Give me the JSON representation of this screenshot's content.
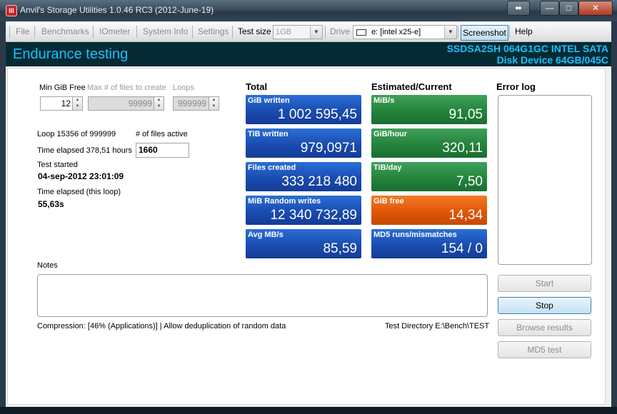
{
  "window": {
    "title": "Anvil's Storage Utilities 1.0.46 RC3 (2012-June-19)",
    "app_icon_glyph": "III",
    "controls": {
      "resize": "⬌",
      "minimize": "—",
      "maximize": "□",
      "close": "✕"
    }
  },
  "menubar": {
    "file": "File",
    "benchmarks": "Benchmarks",
    "iometer": "IOmeter",
    "system_info": "System Info",
    "settings": "Settings",
    "test_size_label": "Test size",
    "test_size_value": "1GB",
    "drive_label": "Drive",
    "drive_value": "e: [intel x25-e]",
    "screenshot": "Screenshot",
    "help": "Help"
  },
  "header": {
    "title": "Endurance testing",
    "device_line1": "SSDSA2SH 064G1GC INTEL SATA",
    "device_line2": "Disk Device 64GB/045C",
    "accent_color": "#19c0ff"
  },
  "params": {
    "min_gib_free_label": "Min GiB Free",
    "min_gib_free_value": "12",
    "max_files_label": "Max # of files to create",
    "max_files_value": "99999",
    "loops_label": "Loops",
    "loops_value": "999999"
  },
  "status": {
    "loop_text": "Loop 15356 of 999999",
    "files_active_label": "# of files active",
    "files_active_value": "1660",
    "time_elapsed_text": "Time elapsed 378,51 hours",
    "test_started_label": "Test started",
    "test_started_value": "04-sep-2012 23:01:09",
    "loop_elapsed_label": "Time elapsed (this loop)",
    "loop_elapsed_value": "55,63s"
  },
  "totals": {
    "heading": "Total",
    "tiles": [
      {
        "label": "GiB written",
        "value": "1 002 595,45"
      },
      {
        "label": "TiB written",
        "value": "979,0971"
      },
      {
        "label": "Files created",
        "value": "333 218 480"
      },
      {
        "label": "MiB Random writes",
        "value": "12 340 732,89"
      },
      {
        "label": "Avg MB/s",
        "value": "85,59"
      }
    ]
  },
  "estimates": {
    "heading": "Estimated/Current",
    "tiles": [
      {
        "label": "MiB/s",
        "value": "91,05"
      },
      {
        "label": "GiB/hour",
        "value": "320,11"
      },
      {
        "label": "TiB/day",
        "value": "7,50"
      },
      {
        "label": "GiB free",
        "value": "14,34"
      },
      {
        "label": "MD5 runs/mismatches",
        "value": "154 / 0"
      }
    ]
  },
  "error_log": {
    "label": "Error log"
  },
  "notes": {
    "label": "Notes"
  },
  "footer": {
    "compression_text": "Compression: [46% (Applications)] | Allow deduplication of random data",
    "test_directory_text": "Test Directory E:\\Bench\\TEST"
  },
  "buttons": {
    "start": "Start",
    "stop": "Stop",
    "browse_results": "Browse results",
    "md5_test": "MD5 test"
  },
  "colors": {
    "tile_blue": "#1a4cb0",
    "tile_green": "#24843c",
    "tile_orange": "#e05608",
    "header_band": "#062a33"
  }
}
